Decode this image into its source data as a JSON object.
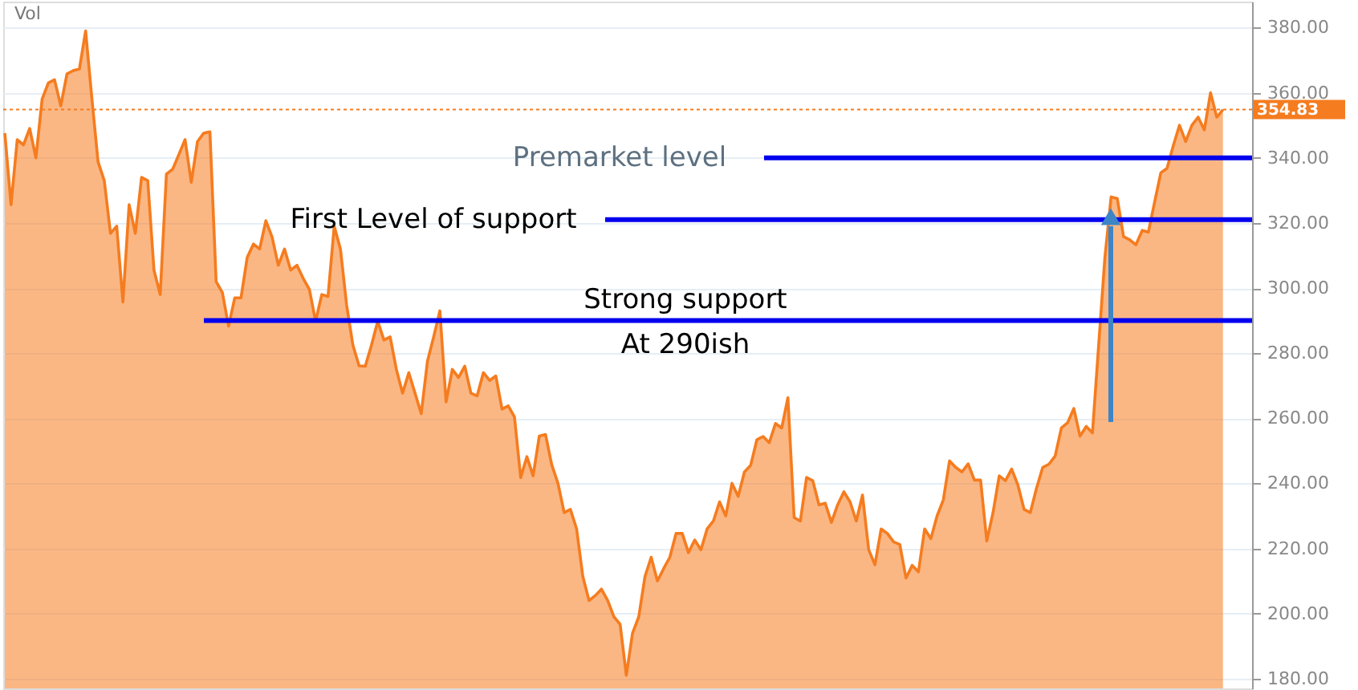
{
  "chart_data": {
    "type": "area",
    "categories": [
      null,
      null,
      null,
      null,
      null,
      null,
      null,
      null,
      null,
      null,
      null,
      null,
      null,
      null,
      null,
      null,
      null,
      null,
      null,
      null,
      null,
      null,
      null,
      null,
      null,
      null,
      null,
      null,
      null,
      null,
      null,
      null,
      null,
      null,
      null,
      null,
      null,
      null,
      null,
      null,
      null,
      null,
      null,
      null,
      null,
      null,
      null,
      null,
      null,
      null,
      null,
      null,
      null,
      null,
      null,
      null,
      null,
      null,
      null,
      null,
      null,
      null,
      null,
      null,
      null,
      null,
      null,
      null,
      null,
      null,
      null,
      null,
      null,
      null,
      null,
      null,
      null,
      null,
      null,
      null,
      null,
      null,
      null,
      null,
      null,
      null,
      null,
      null,
      null,
      null,
      null,
      null,
      null,
      null,
      null,
      null,
      null,
      null,
      null,
      null,
      null,
      null,
      null,
      null,
      null,
      null,
      null,
      null,
      null,
      null,
      null,
      null,
      null,
      null,
      null,
      null,
      null,
      null,
      null,
      null,
      null,
      null,
      null,
      null,
      null,
      null,
      null,
      null,
      null,
      null,
      null,
      null,
      null,
      null,
      null,
      null,
      null,
      null,
      null,
      null,
      null,
      null,
      null,
      null,
      null,
      null,
      null,
      null,
      null,
      null,
      null,
      null,
      null,
      null,
      null,
      null,
      null,
      null,
      null,
      null,
      null,
      null,
      null,
      null,
      null,
      null,
      null,
      null,
      null,
      null,
      null,
      null,
      null,
      null,
      null,
      null,
      null,
      null,
      null,
      null,
      null,
      null,
      null,
      null,
      null,
      null,
      null,
      null,
      null,
      null,
      null,
      null,
      null,
      null,
      null,
      null,
      null
    ],
    "series": [
      {
        "color": "#f57c1f",
        "values": [
          347.6,
          325.6,
          345.6,
          344,
          349,
          340,
          358,
          363,
          364,
          356,
          365.8,
          366.8,
          367.3,
          379,
          358.4,
          338.8,
          333,
          316.8,
          319,
          295.7,
          325.6,
          316.8,
          334,
          333,
          305.5,
          298,
          335,
          336.5,
          341,
          345.6,
          332.5,
          345,
          347.6,
          348,
          302,
          298.6,
          288.3,
          297,
          297,
          309.4,
          313.5,
          312,
          320.7,
          315.7,
          307,
          312,
          305.5,
          307,
          303,
          299.6,
          289.8,
          298,
          297.4,
          319,
          312,
          294.7,
          282.5,
          276.1,
          276,
          282.5,
          289.8,
          284,
          285,
          275,
          267.7,
          274,
          267.7,
          261.4,
          277.5,
          285,
          293,
          265,
          275,
          272.5,
          276,
          267.7,
          266.9,
          274,
          271.6,
          273,
          262.8,
          263.8,
          260.4,
          241.8,
          248.2,
          242.3,
          254.5,
          255,
          245.7,
          240,
          231,
          232,
          226,
          211.4,
          204,
          205.5,
          207.5,
          204,
          199,
          196.7,
          181,
          194,
          199,
          211.4,
          217.3,
          210,
          213.8,
          217.3,
          224.6,
          224.6,
          218.7,
          222.6,
          219.6,
          226,
          228.4,
          234.3,
          230,
          240,
          236,
          243.5,
          245.5,
          253.4,
          254.4,
          252.5,
          258.4,
          257,
          266.3,
          229.5,
          228.4,
          241.8,
          240.8,
          233.4,
          233.9,
          228,
          233.4,
          237.4,
          234.3,
          228.4,
          236.4,
          219.6,
          215,
          226,
          224.6,
          222,
          221.2,
          210.9,
          214.8,
          212.8,
          226,
          223,
          230,
          234.9,
          246.9,
          244.9,
          243.5,
          246,
          241,
          241,
          222.3,
          231,
          242.3,
          240.8,
          244.4,
          239.5,
          232,
          231,
          238.5,
          244.9,
          245.9,
          248.4,
          257,
          258.6,
          263,
          254.5,
          257.5,
          255.5,
          282.5,
          309.4,
          328,
          327.5,
          315.8,
          314.8,
          313.3,
          317.7,
          317.2,
          326.4,
          335.4,
          336.8,
          343.7,
          350,
          345,
          350,
          352.5,
          348.6,
          360,
          352.5,
          354.83
        ]
      }
    ],
    "ylim": [
      177,
      388
    ],
    "yticks": [
      {
        "value": 180,
        "label": "180.00"
      },
      {
        "value": 200,
        "label": "200.00"
      },
      {
        "value": 220,
        "label": "220.00"
      },
      {
        "value": 240,
        "label": "240.00"
      },
      {
        "value": 260,
        "label": "260.00"
      },
      {
        "value": 280,
        "label": "280.00"
      },
      {
        "value": 300,
        "label": "300.00"
      },
      {
        "value": 320,
        "label": "320.00"
      },
      {
        "value": 340,
        "label": "340.00"
      },
      {
        "value": 360,
        "label": "360.00"
      },
      {
        "value": 380,
        "label": "380.00"
      }
    ],
    "ref_lines": [
      {
        "axis": "y",
        "value": 354.83,
        "label": "354.83",
        "color": "#f57c1f",
        "line_style": "dotted"
      },
      {
        "axis": "y",
        "value": 340,
        "label": "Premarket level",
        "color": "#0000ee"
      },
      {
        "axis": "y",
        "value": 321,
        "label": "First Level of support",
        "color": "#0000ee"
      },
      {
        "axis": "y",
        "value": 290,
        "label": "Strong support\nAt 290ish",
        "color": "#0000ee"
      }
    ],
    "annotations": [
      "Vol"
    ],
    "grid": "y",
    "tick_labels": "y"
  }
}
